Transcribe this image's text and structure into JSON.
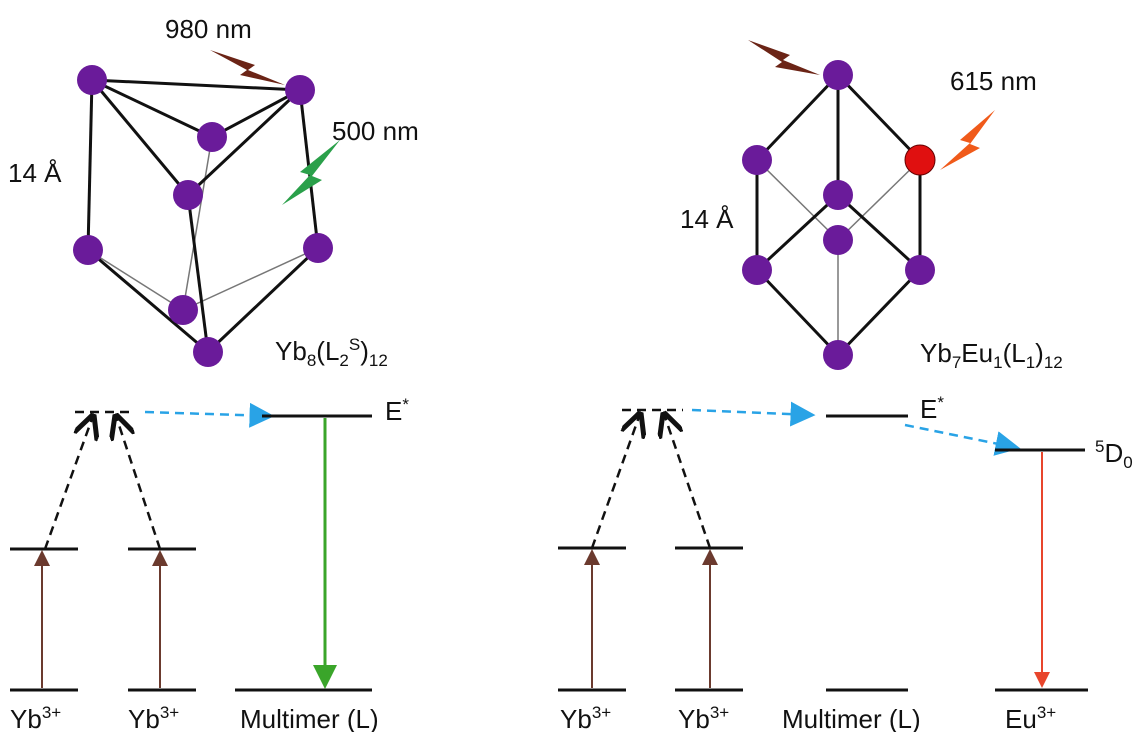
{
  "left_panel": {
    "excitation": "980 nm",
    "emission": "500 nm",
    "size": "14 Å",
    "formula": [
      "Yb",
      "8",
      "(L",
      "2",
      "S",
      ")",
      "12"
    ],
    "levels": {
      "excited": [
        "E",
        "*"
      ],
      "donor_1": [
        "Yb",
        "3+"
      ],
      "donor_2": [
        "Yb",
        "3+"
      ],
      "acceptor": "Multimer (L)"
    }
  },
  "right_panel": {
    "emission": "615 nm",
    "size": "14 Å",
    "formula": [
      "Yb",
      "7",
      "Eu",
      "1",
      "(L",
      "1",
      ")",
      "12"
    ],
    "levels": {
      "excited": [
        "E",
        "*"
      ],
      "eu_excited": [
        "5",
        "D",
        "0"
      ],
      "donor_1": [
        "Yb",
        "3+"
      ],
      "donor_2": [
        "Yb",
        "3+"
      ],
      "antenna": "Multimer (L)",
      "emitter": [
        "Eu",
        "3+"
      ]
    }
  }
}
